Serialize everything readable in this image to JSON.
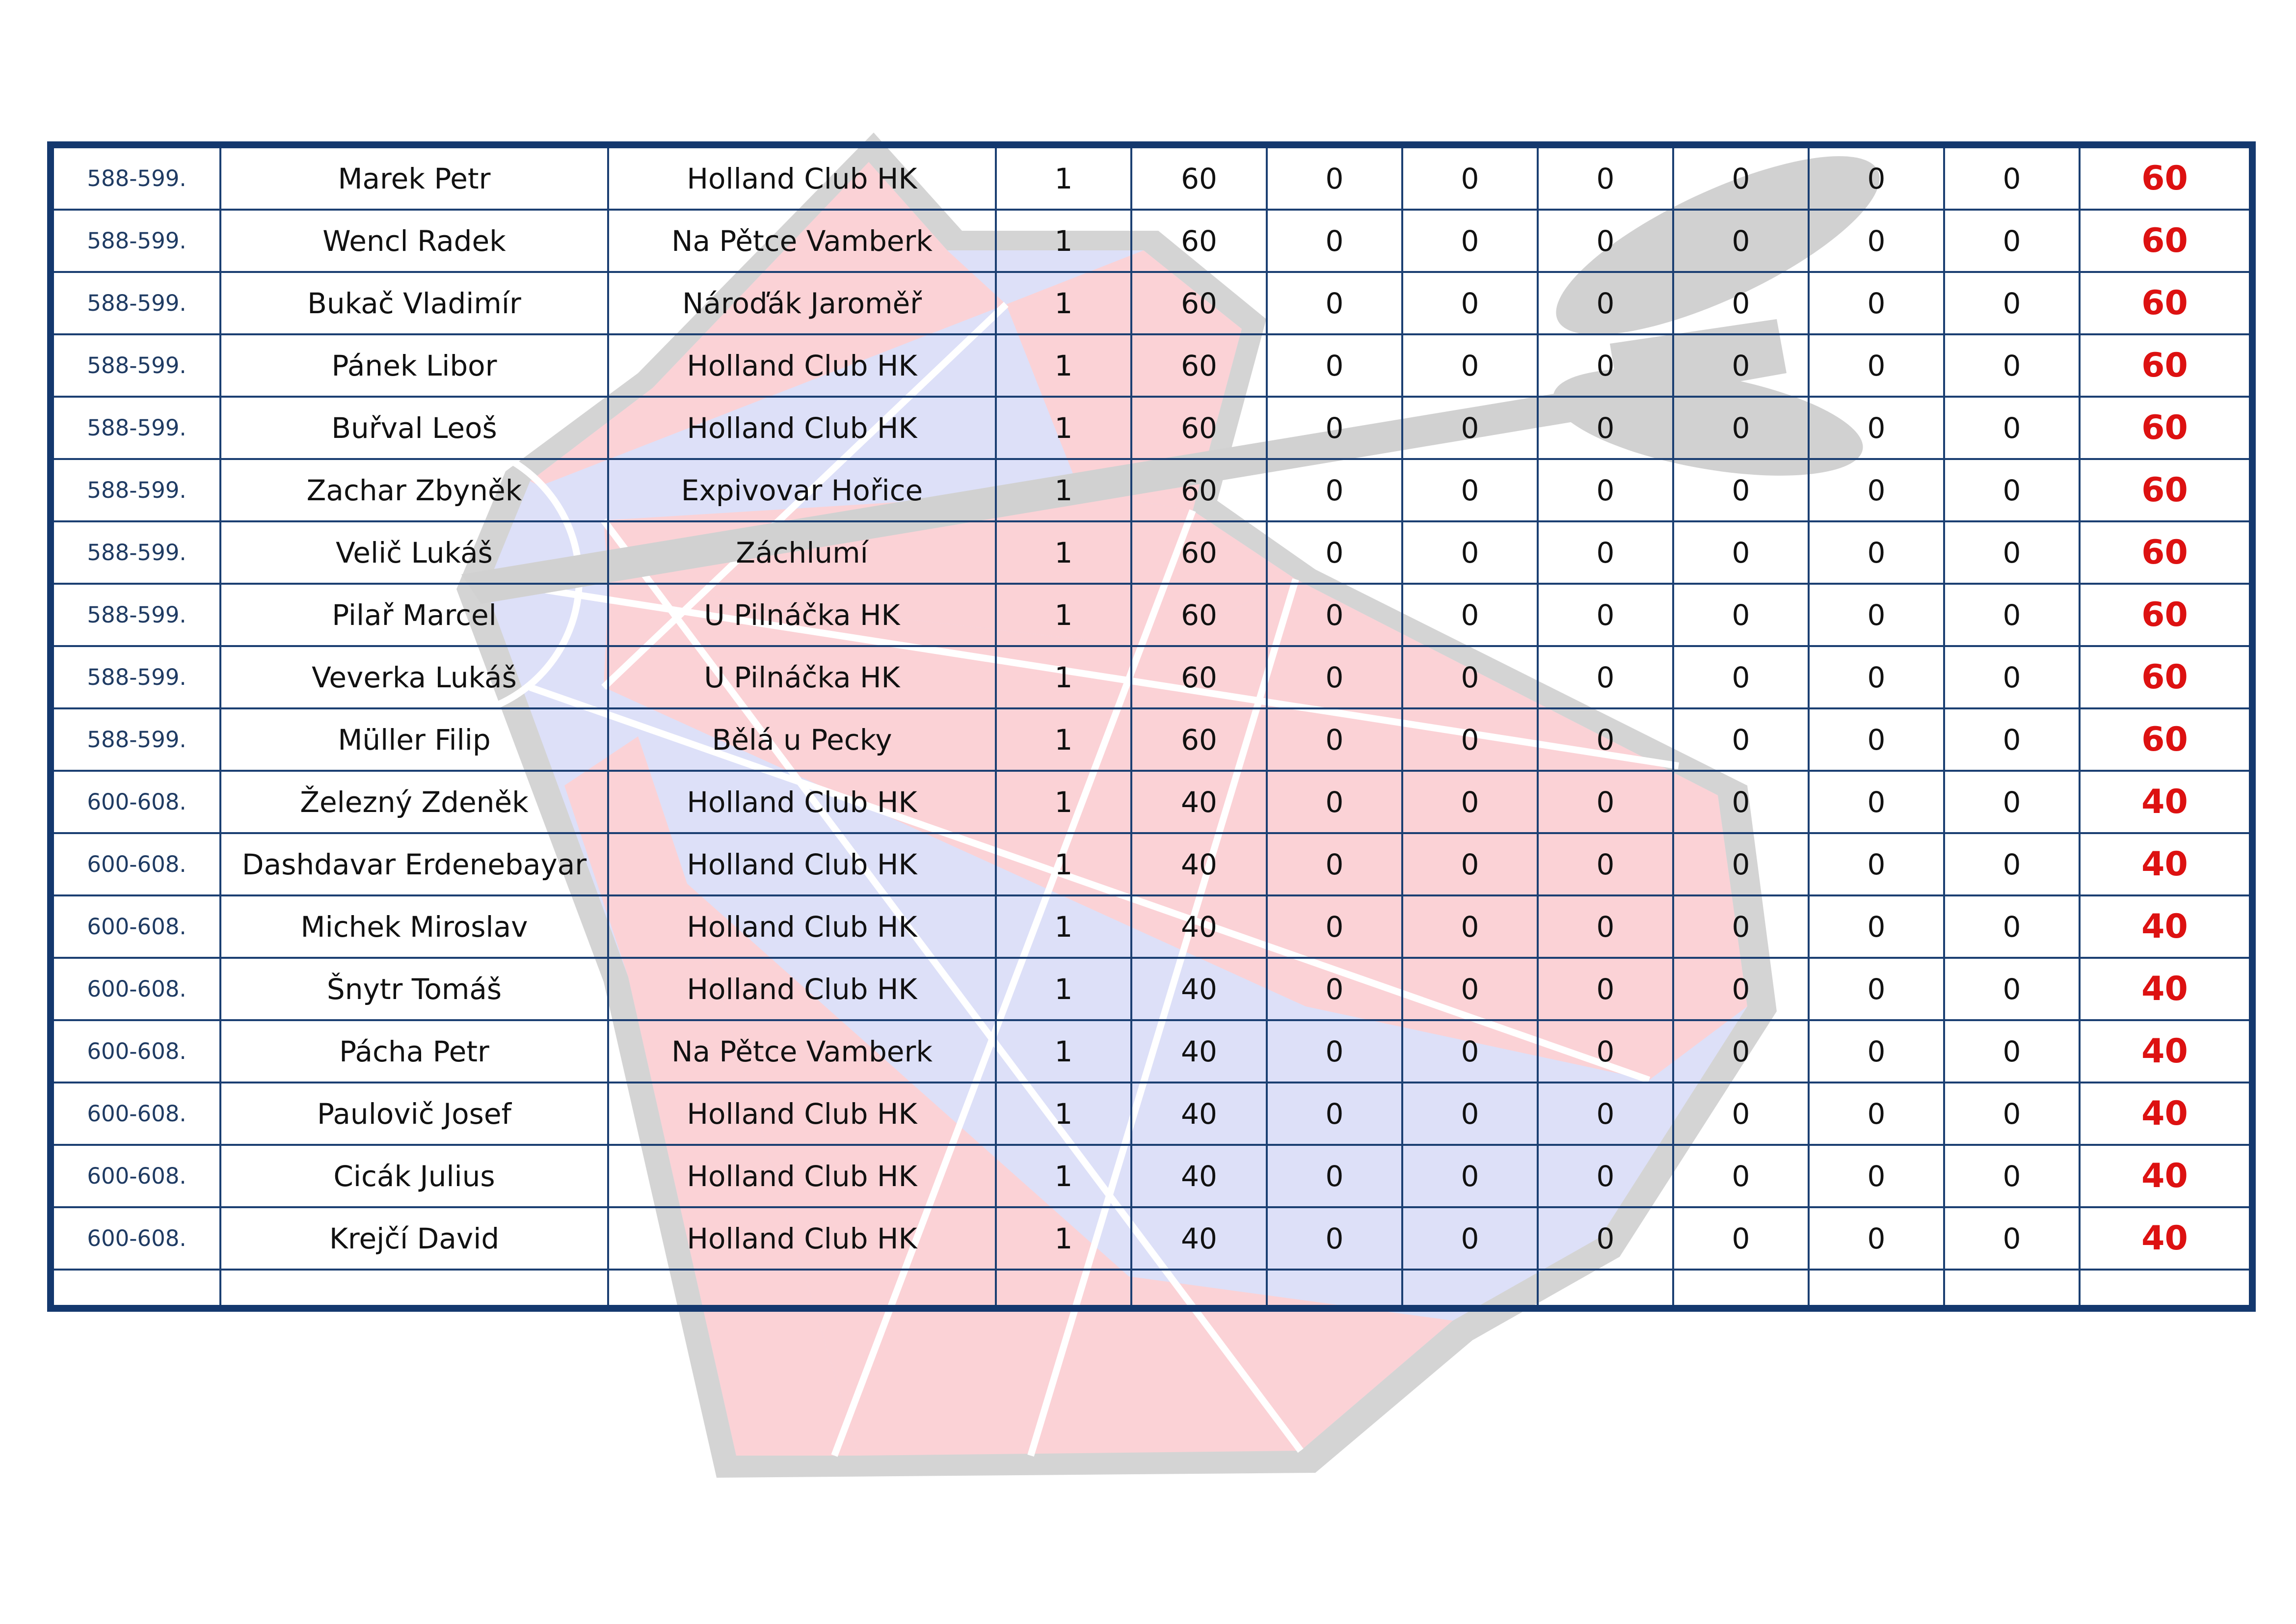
{
  "colors": {
    "grid": "#1b3f72",
    "frame": "#14386e",
    "total": "#dd1111",
    "watermark_red": "#fbd0d4",
    "watermark_blue": "#dcdff8",
    "watermark_grey": "#d2d2d2"
  },
  "watermark": {
    "icon": "dartboard-with-dart-icon"
  },
  "rows": [
    {
      "place": "588-599.",
      "name": "Marek Petr",
      "club": "Holland Club HK",
      "c1": "1",
      "c2": "60",
      "c3": "0",
      "c4": "0",
      "c5": "0",
      "c6": "0",
      "c7": "0",
      "c8": "0",
      "total": "60"
    },
    {
      "place": "588-599.",
      "name": "Wencl Radek",
      "club": "Na Pětce Vamberk",
      "c1": "1",
      "c2": "60",
      "c3": "0",
      "c4": "0",
      "c5": "0",
      "c6": "0",
      "c7": "0",
      "c8": "0",
      "total": "60"
    },
    {
      "place": "588-599.",
      "name": "Bukač Vladimír",
      "club": "Nároďák Jaroměř",
      "c1": "1",
      "c2": "60",
      "c3": "0",
      "c4": "0",
      "c5": "0",
      "c6": "0",
      "c7": "0",
      "c8": "0",
      "total": "60"
    },
    {
      "place": "588-599.",
      "name": "Pánek Libor",
      "club": "Holland Club HK",
      "c1": "1",
      "c2": "60",
      "c3": "0",
      "c4": "0",
      "c5": "0",
      "c6": "0",
      "c7": "0",
      "c8": "0",
      "total": "60"
    },
    {
      "place": "588-599.",
      "name": "Buřval Leoš",
      "club": "Holland Club HK",
      "c1": "1",
      "c2": "60",
      "c3": "0",
      "c4": "0",
      "c5": "0",
      "c6": "0",
      "c7": "0",
      "c8": "0",
      "total": "60"
    },
    {
      "place": "588-599.",
      "name": "Zachar Zbyněk",
      "club": "Expivovar Hořice",
      "c1": "1",
      "c2": "60",
      "c3": "0",
      "c4": "0",
      "c5": "0",
      "c6": "0",
      "c7": "0",
      "c8": "0",
      "total": "60"
    },
    {
      "place": "588-599.",
      "name": "Velič Lukáš",
      "club": "Záchlumí",
      "c1": "1",
      "c2": "60",
      "c3": "0",
      "c4": "0",
      "c5": "0",
      "c6": "0",
      "c7": "0",
      "c8": "0",
      "total": "60"
    },
    {
      "place": "588-599.",
      "name": "Pilař Marcel",
      "club": "U Pilnáčka HK",
      "c1": "1",
      "c2": "60",
      "c3": "0",
      "c4": "0",
      "c5": "0",
      "c6": "0",
      "c7": "0",
      "c8": "0",
      "total": "60"
    },
    {
      "place": "588-599.",
      "name": "Veverka Lukáš",
      "club": "U Pilnáčka HK",
      "c1": "1",
      "c2": "60",
      "c3": "0",
      "c4": "0",
      "c5": "0",
      "c6": "0",
      "c7": "0",
      "c8": "0",
      "total": "60"
    },
    {
      "place": "588-599.",
      "name": "Müller Filip",
      "club": "Bělá u Pecky",
      "c1": "1",
      "c2": "60",
      "c3": "0",
      "c4": "0",
      "c5": "0",
      "c6": "0",
      "c7": "0",
      "c8": "0",
      "total": "60"
    },
    {
      "place": "600-608.",
      "name": "Železný Zdeněk",
      "club": "Holland Club HK",
      "c1": "1",
      "c2": "40",
      "c3": "0",
      "c4": "0",
      "c5": "0",
      "c6": "0",
      "c7": "0",
      "c8": "0",
      "total": "40"
    },
    {
      "place": "600-608.",
      "name": "Dashdavar Erdenebayar",
      "club": "Holland Club HK",
      "c1": "1",
      "c2": "40",
      "c3": "0",
      "c4": "0",
      "c5": "0",
      "c6": "0",
      "c7": "0",
      "c8": "0",
      "total": "40"
    },
    {
      "place": "600-608.",
      "name": "Michek Miroslav",
      "club": "Holland Club HK",
      "c1": "1",
      "c2": "40",
      "c3": "0",
      "c4": "0",
      "c5": "0",
      "c6": "0",
      "c7": "0",
      "c8": "0",
      "total": "40"
    },
    {
      "place": "600-608.",
      "name": "Šnytr Tomáš",
      "club": "Holland Club HK",
      "c1": "1",
      "c2": "40",
      "c3": "0",
      "c4": "0",
      "c5": "0",
      "c6": "0",
      "c7": "0",
      "c8": "0",
      "total": "40"
    },
    {
      "place": "600-608.",
      "name": "Pácha Petr",
      "club": "Na Pětce Vamberk",
      "c1": "1",
      "c2": "40",
      "c3": "0",
      "c4": "0",
      "c5": "0",
      "c6": "0",
      "c7": "0",
      "c8": "0",
      "total": "40"
    },
    {
      "place": "600-608.",
      "name": "Paulovič Josef",
      "club": "Holland Club HK",
      "c1": "1",
      "c2": "40",
      "c3": "0",
      "c4": "0",
      "c5": "0",
      "c6": "0",
      "c7": "0",
      "c8": "0",
      "total": "40"
    },
    {
      "place": "600-608.",
      "name": "Cicák Julius",
      "club": "Holland Club HK",
      "c1": "1",
      "c2": "40",
      "c3": "0",
      "c4": "0",
      "c5": "0",
      "c6": "0",
      "c7": "0",
      "c8": "0",
      "total": "40"
    },
    {
      "place": "600-608.",
      "name": "Krejčí David",
      "club": "Holland Club HK",
      "c1": "1",
      "c2": "40",
      "c3": "0",
      "c4": "0",
      "c5": "0",
      "c6": "0",
      "c7": "0",
      "c8": "0",
      "total": "40"
    }
  ]
}
